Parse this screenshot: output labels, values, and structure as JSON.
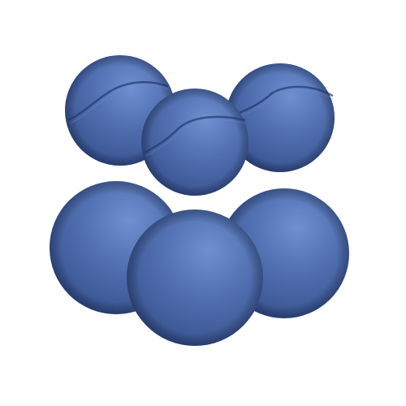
{
  "scene": {
    "background_color": "#ffffff",
    "object_type": "sphere",
    "object_count": 6,
    "upper_row_seam_count": 3,
    "colors": {
      "highlight": "#6f8fcf",
      "light": "#5574b5",
      "mid": "#3e5a98",
      "dark": "#263d73",
      "shadow": "#18295a"
    }
  }
}
